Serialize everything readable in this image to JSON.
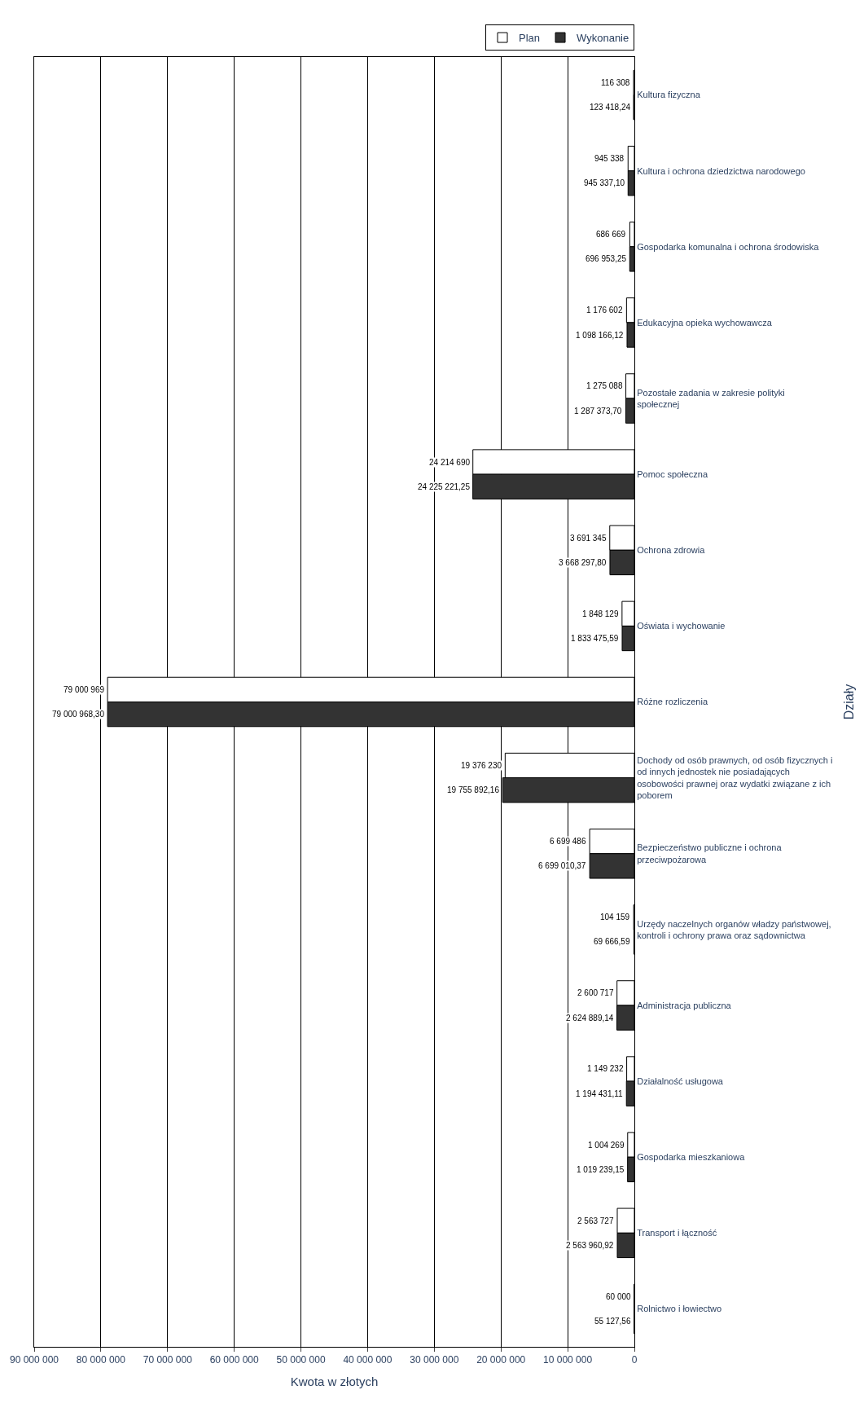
{
  "chart_data": {
    "type": "bar",
    "orientation": "horizontal",
    "xlabel": "Kwota w złotych",
    "ylabel": "Działy",
    "categories": [
      "Kultura fizyczna",
      "Kultura i ochrona dziedzictwa narodowego",
      "Gospodarka komunalna i ochrona środowiska",
      "Edukacyjna opieka wychowawcza",
      "Pozostałe zadania w zakresie polityki społecznej",
      "Pomoc społeczna",
      "Ochrona zdrowia",
      "Oświata i wychowanie",
      "Różne rozliczenia",
      "Dochody od osób prawnych, od osób fizycznych i od innych jednostek nie posiadających osobowości prawnej oraz wydatki związane z ich poborem",
      "Bezpieczeństwo publiczne i ochrona przeciwpożarowa",
      "Urzędy naczelnych organów władzy państwowej, kontroli i ochrony prawa oraz sądownictwa",
      "Administracja publiczna",
      "Działalność usługowa",
      "Gospodarka mieszkaniowa",
      "Transport i łączność",
      "Rolnictwo i łowiectwo"
    ],
    "series": [
      {
        "name": "Plan",
        "color": "#ffffff",
        "values": [
          116308,
          945338,
          686669,
          1176602,
          1275088,
          24214690,
          3691345,
          1848129,
          79000969,
          19376230,
          6699486,
          104159,
          2600717,
          1149232,
          1004269,
          2563727,
          60000
        ],
        "value_labels": [
          "116 308",
          "945 338",
          "686 669",
          "1 176 602",
          "1 275 088",
          "24 214 690",
          "3 691 345",
          "1 848 129",
          "79 000 969",
          "19 376 230",
          "6 699 486",
          "104 159",
          "2 600 717",
          "1 149 232",
          "1 004 269",
          "2 563 727",
          "60 000"
        ]
      },
      {
        "name": "Wykonanie",
        "color": "#333333",
        "values": [
          123418.24,
          945337.1,
          696953.25,
          1098166.12,
          1287373.7,
          24225221.25,
          3668297.8,
          1833475.59,
          79000968.3,
          19755892.16,
          6699010.37,
          69666.59,
          2624889.14,
          1194431.11,
          1019239.15,
          2563960.92,
          55127.56
        ],
        "value_labels": [
          "123 418,24",
          "945 337,10",
          "696 953,25",
          "1 098 166,12",
          "1 287 373,70",
          "24 225 221,25",
          "3 668 297,80",
          "1 833 475,59",
          "79 000 968,30",
          "19 755 892,16",
          "6 699 010,37",
          "69 666,59",
          "2 624 889,14",
          "1 194 431,11",
          "1 019 239,15",
          "2 563 960,92",
          "55 127,56"
        ]
      }
    ],
    "xlim": [
      90000000,
      0
    ],
    "xticks": [
      {
        "value": 0,
        "label": "0"
      },
      {
        "value": 10000000,
        "label": "10 000 000"
      },
      {
        "value": 20000000,
        "label": "20 000 000"
      },
      {
        "value": 30000000,
        "label": "30 000 000"
      },
      {
        "value": 40000000,
        "label": "40 000 000"
      },
      {
        "value": 50000000,
        "label": "50 000 000"
      },
      {
        "value": 60000000,
        "label": "60 000 000"
      },
      {
        "value": 70000000,
        "label": "70 000 000"
      },
      {
        "value": 80000000,
        "label": "80 000 000"
      },
      {
        "value": 90000000,
        "label": "90 000 000"
      }
    ],
    "grid": "x",
    "legend": "top right"
  }
}
